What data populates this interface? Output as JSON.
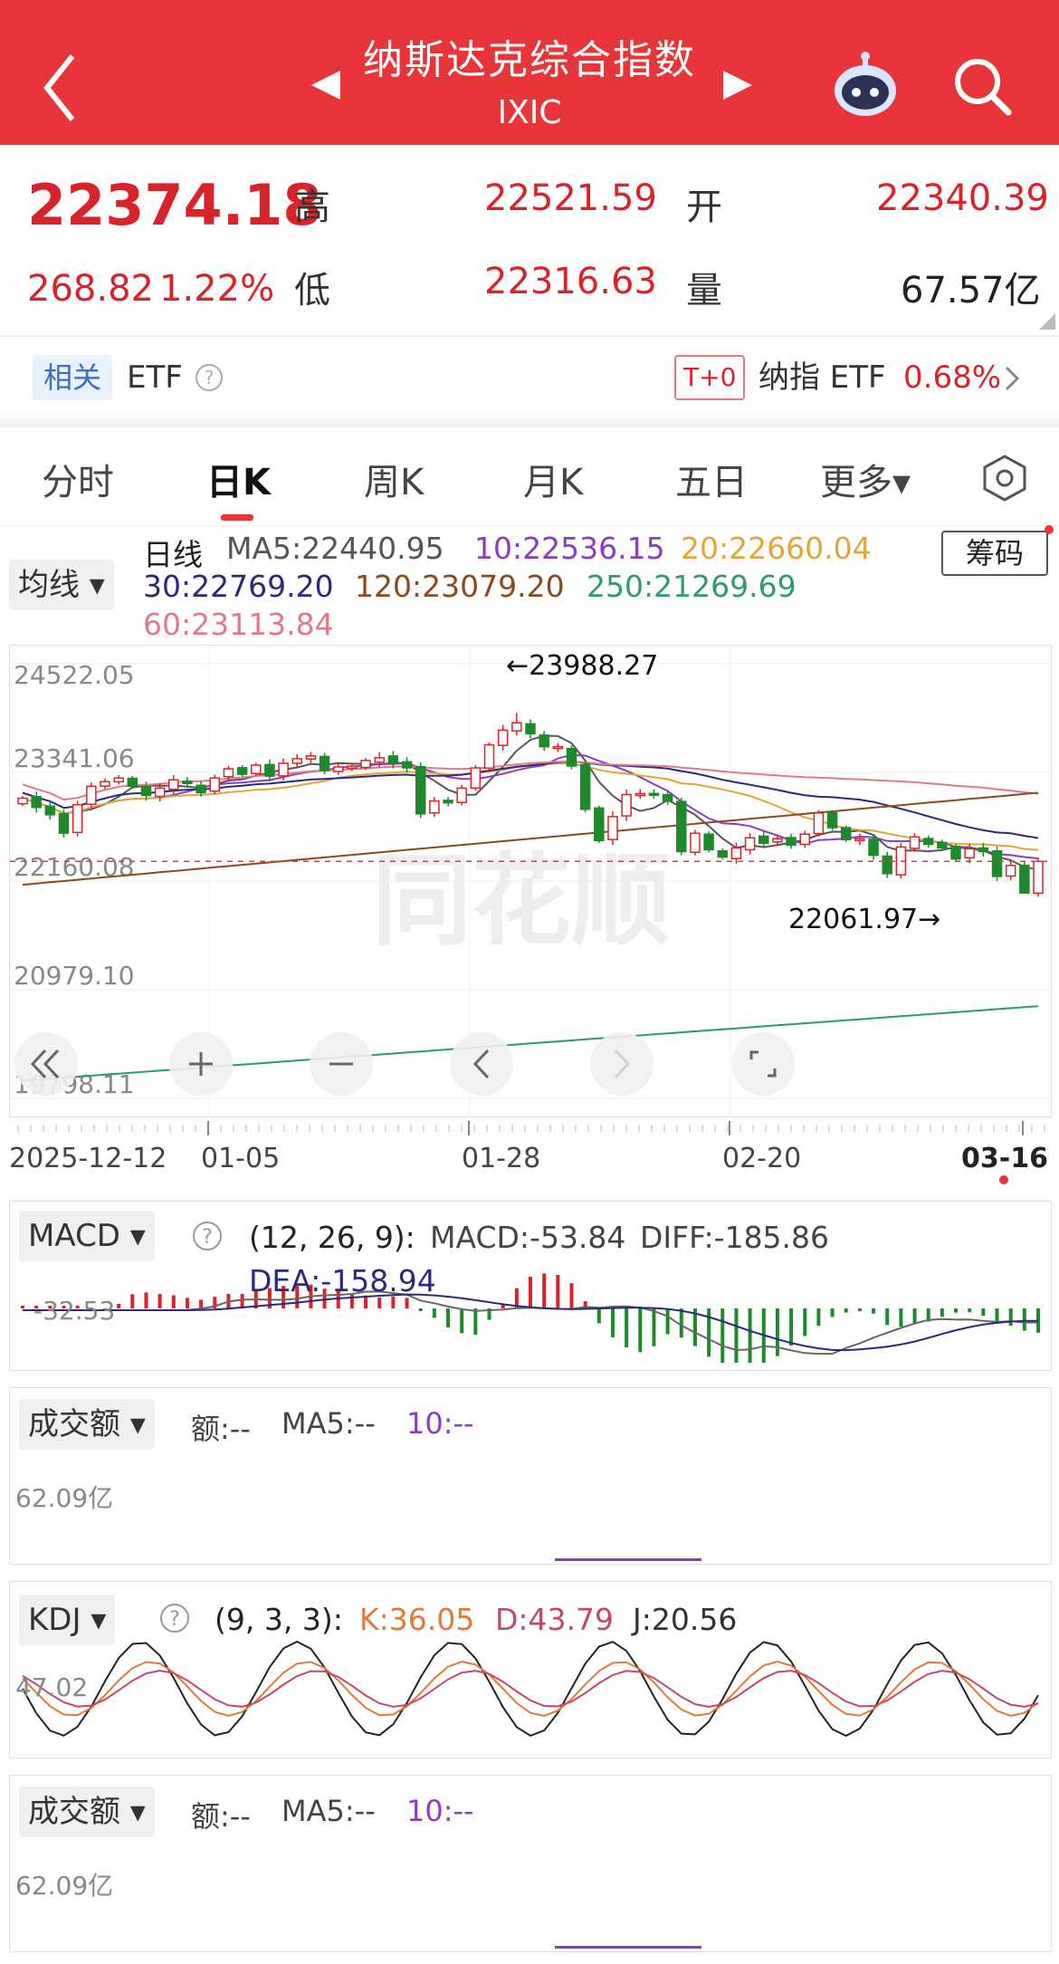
{
  "header": {
    "title": "纳斯达克综合指数",
    "code": "IXIC"
  },
  "quote": {
    "last": "22374.18",
    "change": "268.82",
    "change_pct": "1.22%",
    "high_label": "高",
    "high": "22521.59",
    "open_label": "开",
    "open": "22340.39",
    "low_label": "低",
    "low": "22316.63",
    "volume_label": "量",
    "volume": "67.57亿"
  },
  "etf_bar": {
    "tag": "相关",
    "label": "ETF",
    "t0_badge": "T+0",
    "product": "纳指 ETF",
    "product_change": "0.68%"
  },
  "tabs": [
    {
      "label": "分时"
    },
    {
      "label": "日K"
    },
    {
      "label": "周K"
    },
    {
      "label": "月K"
    },
    {
      "label": "五日"
    },
    {
      "label": "更多▾"
    }
  ],
  "active_tab": "日K",
  "ma_legend": {
    "selector": "均线",
    "kline_label": "日线",
    "ma5": "MA5:22440.95",
    "ma10": "10:22536.15",
    "ma20": "20:22660.04",
    "ma30": "30:22769.20",
    "ma120": "120:23079.20",
    "ma250": "250:21269.69",
    "ma60": "60:23113.84",
    "chips_button": "筹码"
  },
  "main_chart": {
    "y_labels": [
      "24522.05",
      "23341.06",
      "22160.08",
      "20979.10",
      "19798.11"
    ],
    "x_labels": [
      "2025-12-12",
      "01-05",
      "01-28",
      "02-20",
      "03-16"
    ],
    "high_marker": "←23988.27",
    "low_marker": "22061.97→",
    "watermark": "同花顺"
  },
  "chart_data": {
    "type": "candlestick",
    "title": "",
    "ylim": [
      19798.11,
      24522.05
    ],
    "y_ticks": [
      24522.05,
      23341.06,
      22160.08,
      20979.1,
      19798.11
    ],
    "x_ticks": [
      "2025-12-12",
      "01-05",
      "01-28",
      "02-20",
      "03-16"
    ],
    "high": 23988.27,
    "low": 22061.97,
    "last_close": 22374.18,
    "closes": [
      23060,
      22960,
      22880,
      22680,
      22990,
      23190,
      23240,
      23280,
      23190,
      23090,
      23170,
      23260,
      23220,
      23120,
      23280,
      23380,
      23320,
      23420,
      23300,
      23440,
      23490,
      23520,
      23360,
      23400,
      23410,
      23470,
      23500,
      23440,
      23390,
      22890,
      23030,
      23010,
      23170,
      23390,
      23640,
      23800,
      23880,
      23760,
      23620,
      23620,
      23410,
      22940,
      22600,
      22860,
      23100,
      23110,
      23100,
      23030,
      22480,
      22680,
      22500,
      22420,
      22520,
      22630,
      22570,
      22620,
      22550,
      22670,
      22900,
      22740,
      22610,
      22620,
      22440,
      22240,
      22530,
      22640,
      22560,
      22520,
      22400,
      22510,
      22480,
      22210,
      22330,
      22030,
      22374.18
    ],
    "ma250": {
      "start": 19990,
      "end": 20800
    }
  },
  "macd": {
    "selector": "MACD",
    "params": "(12, 26, 9):",
    "macd": "MACD:-53.84",
    "diff": "DIFF:-185.86",
    "dea": "DEA:-158.94",
    "axis_label": "-32.53"
  },
  "volume1": {
    "selector": "成交额",
    "amount": "额:--",
    "ma5": "MA5:--",
    "ma10": "10:--",
    "axis_label": "62.09亿"
  },
  "kdj": {
    "selector": "KDJ",
    "params": "(9, 3, 3):",
    "k": "K:36.05",
    "d": "D:43.79",
    "j": "J:20.56",
    "axis_label": "47.02"
  },
  "volume2": {
    "selector": "成交额",
    "amount": "额:--",
    "ma5": "MA5:--",
    "ma10": "10:--",
    "axis_label": "62.09亿"
  },
  "colors": {
    "up": "#d9232b",
    "down": "#1e8a2c",
    "brand": "#e8353a",
    "ma5": "#555555",
    "ma10": "#8b3dbf",
    "ma20": "#e0a63a",
    "ma30": "#2b2a7a",
    "ma120": "#8a4a20",
    "ma250": "#2e9b6e",
    "ma60": "#e07a8a"
  }
}
